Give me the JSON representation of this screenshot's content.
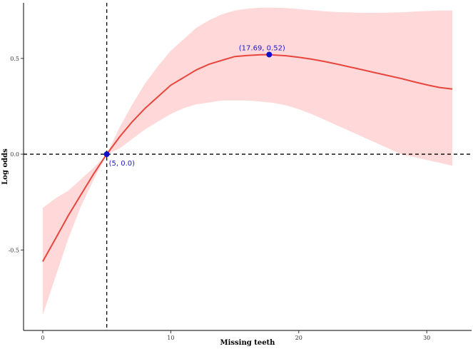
{
  "chart_data": {
    "type": "line",
    "title": "",
    "xlabel": "Missing teeth",
    "ylabel": "Log odds",
    "xlim": [
      -1.5,
      33.5
    ],
    "ylim": [
      -0.92,
      0.79
    ],
    "x_ticks": [
      0,
      10,
      20,
      30
    ],
    "x_tick_labels": [
      "0",
      "10",
      "20",
      "30"
    ],
    "y_ticks": [
      -0.5,
      0.0,
      0.5
    ],
    "y_tick_labels": [
      "-0.5",
      "0.0",
      "0.5"
    ],
    "grid": false,
    "colors": {
      "line": "#e8463c",
      "band": "#ffd9d9",
      "points": "#1010c8",
      "reference_lines": "#000000"
    },
    "series": [
      {
        "x": [
          0,
          1,
          2,
          3,
          4,
          5,
          6,
          7,
          8,
          9,
          10,
          11,
          12,
          13,
          14,
          15,
          16,
          17,
          17.69,
          18,
          19,
          20,
          21,
          22,
          23,
          24,
          25,
          26,
          27,
          28,
          29,
          30,
          31,
          32
        ],
        "y": [
          -0.56,
          -0.44,
          -0.32,
          -0.21,
          -0.1,
          0.0,
          0.09,
          0.17,
          0.24,
          0.3,
          0.36,
          0.4,
          0.44,
          0.47,
          0.49,
          0.51,
          0.515,
          0.519,
          0.52,
          0.518,
          0.514,
          0.506,
          0.496,
          0.484,
          0.47,
          0.455,
          0.44,
          0.425,
          0.41,
          0.395,
          0.378,
          0.362,
          0.348,
          0.34
        ],
        "lower": [
          -0.84,
          -0.64,
          -0.44,
          -0.27,
          -0.13,
          0.0,
          0.03,
          0.08,
          0.13,
          0.17,
          0.21,
          0.24,
          0.26,
          0.27,
          0.28,
          0.28,
          0.28,
          0.275,
          0.27,
          0.268,
          0.255,
          0.235,
          0.21,
          0.18,
          0.15,
          0.12,
          0.09,
          0.06,
          0.03,
          0.0,
          -0.015,
          -0.03,
          -0.045,
          -0.06
        ],
        "upper": [
          -0.28,
          -0.23,
          -0.19,
          -0.13,
          -0.07,
          0.0,
          0.14,
          0.26,
          0.37,
          0.46,
          0.54,
          0.6,
          0.66,
          0.7,
          0.73,
          0.75,
          0.76,
          0.765,
          0.765,
          0.765,
          0.763,
          0.758,
          0.752,
          0.746,
          0.742,
          0.74,
          0.738,
          0.738,
          0.739,
          0.741,
          0.744,
          0.747,
          0.75,
          0.75
        ]
      }
    ],
    "reference_lines": {
      "vertical_x": 5,
      "horizontal_y": 0
    },
    "highlight_points": [
      {
        "x": 5,
        "y": 0.0,
        "label": "(5, 0.0)"
      },
      {
        "x": 17.69,
        "y": 0.52,
        "label": "(17.69, 0.52)"
      }
    ]
  }
}
